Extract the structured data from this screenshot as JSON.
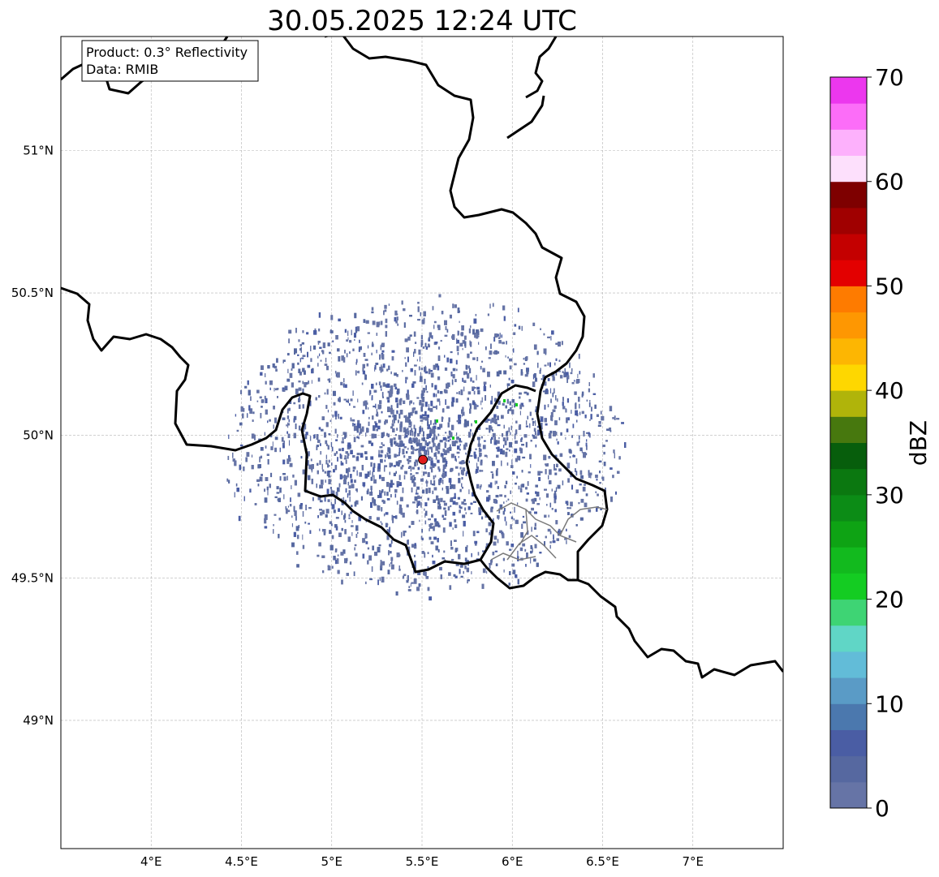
{
  "title": "30.05.2025 12:24 UTC",
  "info_box": {
    "line1": "Product: 0.3° Reflectivity",
    "line2": "Data: RMIB"
  },
  "map": {
    "lon_range": [
      3.5,
      7.5
    ],
    "lat_range": [
      48.55,
      51.4
    ],
    "lon_ticks": [
      4.0,
      4.5,
      5.0,
      5.5,
      6.0,
      6.5,
      7.0
    ],
    "lon_tick_labels": [
      "4°E",
      "4.5°E",
      "5°E",
      "5.5°E",
      "6°E",
      "6.5°E",
      "7°E"
    ],
    "lat_ticks": [
      51.0,
      50.5,
      50.0,
      49.5,
      49.0
    ],
    "lat_tick_labels": [
      "51°N",
      "50.5°N",
      "50°N",
      "49.5°N",
      "49°N"
    ],
    "gridlines": true,
    "radar_site": {
      "lon": 5.505,
      "lat": 49.915,
      "color": "#e01b1b"
    }
  },
  "colorbar": {
    "label": "dBZ",
    "min": 0,
    "max": 70,
    "step": 2.5,
    "tick_values": [
      0,
      10,
      20,
      30,
      40,
      50,
      60,
      70
    ],
    "tick_labels": [
      "0",
      "10",
      "20",
      "30",
      "40",
      "50",
      "60",
      "70"
    ],
    "colors": [
      "#6674a6",
      "#5668a0",
      "#4a5da4",
      "#4b78ae",
      "#5a9bc6",
      "#62bcd8",
      "#60d6c6",
      "#3ed474",
      "#14cc22",
      "#12ba1e",
      "#0ea314",
      "#0c8c16",
      "#0b7810",
      "#075e0c",
      "#47780e",
      "#b0b40a",
      "#fed700",
      "#fdb602",
      "#fe9702",
      "#fe7b00",
      "#e30000",
      "#c40000",
      "#a00000",
      "#7e0000",
      "#fde0fc",
      "#fdb1fc",
      "#fc6df8",
      "#ec37ee"
    ]
  }
}
